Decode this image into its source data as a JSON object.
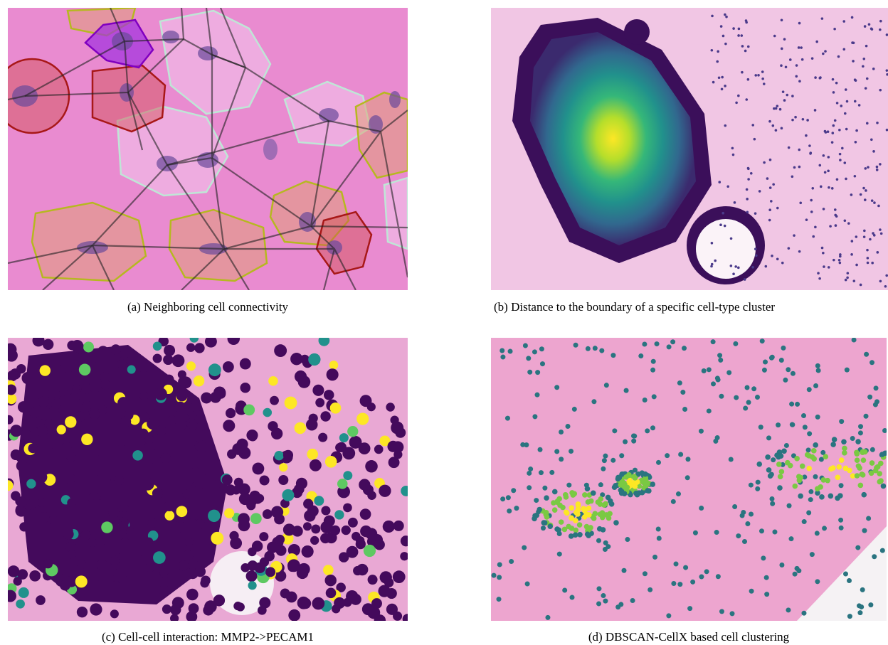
{
  "figure": {
    "panels": [
      {
        "caption": "(a) Neighboring cell connectivity"
      },
      {
        "caption": "(b) Distance to the boundary of a specific cell-type cluster"
      },
      {
        "caption": "(c) Cell-cell interaction: MMP2->PECAM1"
      },
      {
        "caption": "(d) DBSCAN-CellX based cell clustering"
      }
    ]
  }
}
